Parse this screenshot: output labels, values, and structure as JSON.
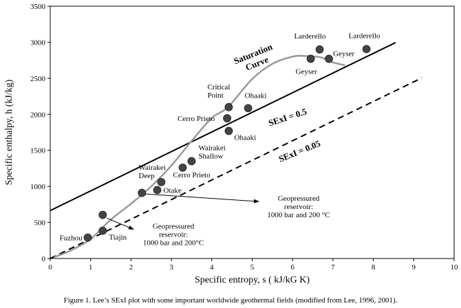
{
  "chart_data": {
    "type": "scatter",
    "xlabel": "Specific entropy, s ( kJ/kG K)",
    "ylabel": "Specific enthalpy, h (kJ/kg)",
    "xlim": [
      0,
      10
    ],
    "ylim": [
      0,
      3500
    ],
    "xticks": [
      "0",
      "1",
      "2",
      "3",
      "4",
      "5",
      "6",
      "7",
      "8",
      "9",
      "10"
    ],
    "yticks": [
      "0",
      "500",
      "1000",
      "1500",
      "2000",
      "2500",
      "3000",
      "3500"
    ],
    "caption": "Figure 1. Lee’s SExI plot with some important worldwide geothermal fields (modified from Lee, 1996, 2001).",
    "points": [
      {
        "label": "Fuzhou",
        "x": 0.93,
        "y": 290
      },
      {
        "label": "Tiajin",
        "x": 1.3,
        "y": 385
      },
      {
        "label": "",
        "x": 1.3,
        "y": 605
      },
      {
        "label": "",
        "x": 2.27,
        "y": 910
      },
      {
        "label": "Otake",
        "x": 2.65,
        "y": 950
      },
      {
        "label": "Wairakei Deep",
        "x": 2.75,
        "y": 1060
      },
      {
        "label": "Cerro Prieto",
        "x": 3.28,
        "y": 1260
      },
      {
        "label": "Wairakei Shallow",
        "x": 3.5,
        "y": 1350
      },
      {
        "label": "Cerro Prieto",
        "x": 4.38,
        "y": 1945
      },
      {
        "label": "Ohaaki",
        "x": 4.42,
        "y": 1770
      },
      {
        "label": "Critical Point",
        "x": 4.42,
        "y": 2100
      },
      {
        "label": "Ohaaki",
        "x": 4.9,
        "y": 2085
      },
      {
        "label": "Geyser",
        "x": 6.45,
        "y": 2770
      },
      {
        "label": "Larderello",
        "x": 6.67,
        "y": 2900
      },
      {
        "label": "Geyser",
        "x": 6.9,
        "y": 2770
      },
      {
        "label": "Larderello",
        "x": 7.83,
        "y": 2905
      }
    ],
    "series": [
      {
        "name": "SExI = 0.5",
        "type": "line",
        "style": "solid",
        "x": [
          0,
          8.55
        ],
        "y": [
          665,
          2995
        ]
      },
      {
        "name": "SExI = 0.05",
        "type": "line",
        "style": "dashed",
        "x": [
          0,
          9.2
        ],
        "y": [
          0,
          2505
        ]
      },
      {
        "name": "Saturation Curve",
        "type": "curve",
        "style": "solid",
        "x": [
          0.1,
          0.5,
          1.0,
          1.5,
          2.0,
          2.5,
          3.0,
          3.5,
          4.0,
          4.4,
          5.0,
          5.5,
          6.0,
          6.3,
          6.7,
          7.0,
          7.3
        ],
        "y": [
          20,
          110,
          270,
          540,
          760,
          1000,
          1290,
          1630,
          1950,
          2100,
          2490,
          2700,
          2800,
          2810,
          2790,
          2720,
          2680
        ]
      }
    ],
    "annotations": [
      {
        "text": [
          "Saturation",
          "Curve"
        ],
        "x": 5.05,
        "y": 2800,
        "rotate": -22
      },
      {
        "text": [
          "SExI = 0.5"
        ],
        "x": 5.9,
        "y": 1920,
        "rotate": -18
      },
      {
        "text": [
          "SExI = 0.05"
        ],
        "x": 6.2,
        "y": 1450,
        "rotate": -22
      },
      {
        "text": [
          "Geopressured",
          "reservoir:",
          "1000 bar and 200 °C"
        ],
        "x": 6.15,
        "y": 800,
        "arrow_from": [
          2.35,
          895
        ]
      },
      {
        "text": [
          "Geopressured",
          "reservoir:",
          "1000 bar and 200°C"
        ],
        "x": 3.05,
        "y": 415,
        "arrow_from": [
          1.4,
          560
        ]
      }
    ],
    "colors": {
      "points": "#444444",
      "curve": "#999999",
      "lines": "#000000"
    }
  }
}
